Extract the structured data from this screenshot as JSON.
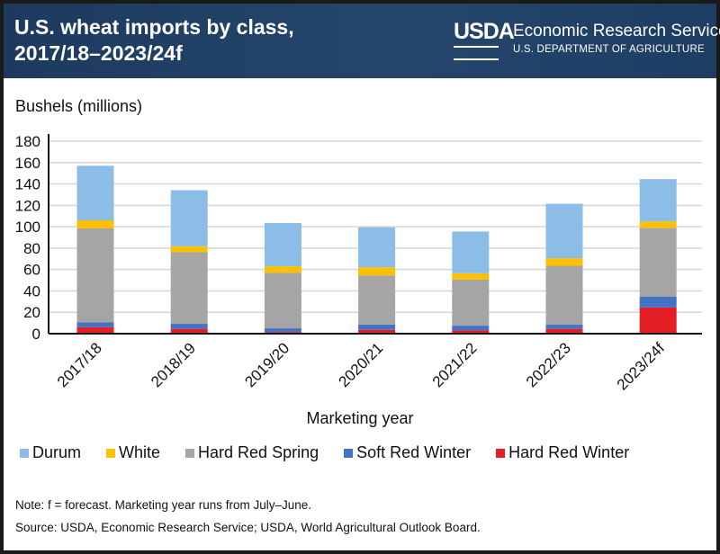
{
  "header": {
    "title_line1": "U.S. wheat imports by class,",
    "title_line2": "2017/18–2023/24f",
    "logo_text": "USDA",
    "agency": "Economic Research Service",
    "department": "U.S. DEPARTMENT OF AGRICULTURE"
  },
  "notes": {
    "note": "Note: f = forecast. Marketing year runs from July–June.",
    "source": "Source: USDA, Economic Research Service; USDA, World Agricultural Outlook Board."
  },
  "chart_data": {
    "type": "bar",
    "stacked": true,
    "title": "U.S. wheat imports by class, 2017/18–2023/24f",
    "xlabel": "Marketing year",
    "ylabel": "Bushels (millions)",
    "ylim": [
      0,
      180
    ],
    "yticks": [
      0,
      20,
      40,
      60,
      80,
      100,
      120,
      140,
      160,
      180
    ],
    "grid": true,
    "legend_position": "bottom",
    "categories": [
      "2017/18",
      "2018/19",
      "2019/20",
      "2020/21",
      "2021/22",
      "2022/23",
      "2023/24f"
    ],
    "series": [
      {
        "name": "Hard Red Winter",
        "color": "#e31e24",
        "values": [
          6,
          4.5,
          1.5,
          3.5,
          3,
          4.5,
          24.5
        ]
      },
      {
        "name": "Soft Red Winter",
        "color": "#4472c4",
        "values": [
          4.5,
          4.7,
          3.5,
          5,
          4.5,
          4,
          10
        ]
      },
      {
        "name": "Hard Red Spring",
        "color": "#a5a5a5",
        "values": [
          88,
          67,
          52,
          46,
          43,
          55,
          64.5
        ]
      },
      {
        "name": "White",
        "color": "#ffc000",
        "values": [
          7.5,
          5.5,
          6,
          7.5,
          6,
          7,
          6
        ]
      },
      {
        "name": "Durum",
        "color": "#8bbde6",
        "values": [
          51,
          52.5,
          40.5,
          37.5,
          39,
          51,
          39.5
        ]
      }
    ],
    "legend_order": [
      "Durum",
      "White",
      "Hard Red Spring",
      "Soft Red Winter",
      "Hard Red Winter"
    ]
  }
}
